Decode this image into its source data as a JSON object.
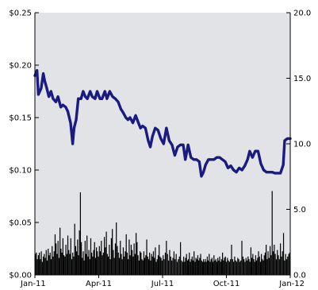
{
  "chart_data": {
    "type": "line",
    "title": "",
    "xlabel": "",
    "ylabel": "",
    "x_ticks": [
      "Jan-11",
      "Apr-11",
      "Jul-11",
      "Oct-11",
      "Jan-12"
    ],
    "x_range": [
      "2011-01-01",
      "2012-01-01"
    ],
    "y_left": {
      "ticks": [
        "$0.00",
        "$0.05",
        "$0.10",
        "$0.15",
        "$0.20",
        "$0.25"
      ],
      "range": [
        0,
        0.25
      ]
    },
    "y_right": {
      "ticks": [
        "0.0",
        "5.0",
        "10.0",
        "15.0",
        "20.0"
      ],
      "range": [
        0,
        20
      ]
    },
    "grid": false,
    "colors": {
      "plot_background": "#e1e3e6",
      "price_line": "#1a1a80",
      "volume_bars": "#000000"
    },
    "series": [
      {
        "type": "line",
        "axis": "left",
        "points": [
          [
            "2011-01-01",
            0.19
          ],
          [
            "2011-01-04",
            0.195
          ],
          [
            "2011-01-06",
            0.172
          ],
          [
            "2011-01-10",
            0.178
          ],
          [
            "2011-01-13",
            0.192
          ],
          [
            "2011-01-15",
            0.185
          ],
          [
            "2011-01-18",
            0.178
          ],
          [
            "2011-01-21",
            0.17
          ],
          [
            "2011-01-24",
            0.175
          ],
          [
            "2011-01-27",
            0.168
          ],
          [
            "2011-01-31",
            0.165
          ],
          [
            "2011-02-03",
            0.17
          ],
          [
            "2011-02-07",
            0.16
          ],
          [
            "2011-02-10",
            0.162
          ],
          [
            "2011-02-14",
            0.16
          ],
          [
            "2011-02-17",
            0.156
          ],
          [
            "2011-02-21",
            0.145
          ],
          [
            "2011-02-24",
            0.125
          ],
          [
            "2011-02-26",
            0.14
          ],
          [
            "2011-03-01",
            0.148
          ],
          [
            "2011-03-04",
            0.168
          ],
          [
            "2011-03-08",
            0.168
          ],
          [
            "2011-03-11",
            0.175
          ],
          [
            "2011-03-14",
            0.17
          ],
          [
            "2011-03-17",
            0.168
          ],
          [
            "2011-03-21",
            0.175
          ],
          [
            "2011-03-24",
            0.17
          ],
          [
            "2011-03-28",
            0.168
          ],
          [
            "2011-03-31",
            0.175
          ],
          [
            "2011-04-04",
            0.168
          ],
          [
            "2011-04-07",
            0.168
          ],
          [
            "2011-04-11",
            0.175
          ],
          [
            "2011-04-14",
            0.168
          ],
          [
            "2011-04-18",
            0.175
          ],
          [
            "2011-04-22",
            0.17
          ],
          [
            "2011-04-26",
            0.168
          ],
          [
            "2011-04-30",
            0.165
          ],
          [
            "2011-05-04",
            0.158
          ],
          [
            "2011-05-07",
            0.155
          ],
          [
            "2011-05-11",
            0.15
          ],
          [
            "2011-05-14",
            0.148
          ],
          [
            "2011-05-17",
            0.15
          ],
          [
            "2011-05-21",
            0.145
          ],
          [
            "2011-05-25",
            0.152
          ],
          [
            "2011-05-29",
            0.145
          ],
          [
            "2011-06-01",
            0.14
          ],
          [
            "2011-06-04",
            0.142
          ],
          [
            "2011-06-08",
            0.14
          ],
          [
            "2011-06-12",
            0.128
          ],
          [
            "2011-06-15",
            0.122
          ],
          [
            "2011-06-18",
            0.132
          ],
          [
            "2011-06-22",
            0.14
          ],
          [
            "2011-06-26",
            0.138
          ],
          [
            "2011-06-30",
            0.13
          ],
          [
            "2011-07-04",
            0.125
          ],
          [
            "2011-07-08",
            0.14
          ],
          [
            "2011-07-12",
            0.128
          ],
          [
            "2011-07-16",
            0.124
          ],
          [
            "2011-07-20",
            0.114
          ],
          [
            "2011-07-24",
            0.122
          ],
          [
            "2011-07-28",
            0.124
          ],
          [
            "2011-08-01",
            0.124
          ],
          [
            "2011-08-04",
            0.11
          ],
          [
            "2011-08-08",
            0.124
          ],
          [
            "2011-08-12",
            0.112
          ],
          [
            "2011-08-16",
            0.11
          ],
          [
            "2011-08-20",
            0.11
          ],
          [
            "2011-08-24",
            0.108
          ],
          [
            "2011-08-27",
            0.094
          ],
          [
            "2011-08-30",
            0.098
          ],
          [
            "2011-09-02",
            0.105
          ],
          [
            "2011-09-06",
            0.11
          ],
          [
            "2011-09-10",
            0.11
          ],
          [
            "2011-09-14",
            0.11
          ],
          [
            "2011-09-18",
            0.112
          ],
          [
            "2011-09-22",
            0.112
          ],
          [
            "2011-09-26",
            0.11
          ],
          [
            "2011-09-30",
            0.108
          ],
          [
            "2011-10-04",
            0.102
          ],
          [
            "2011-10-08",
            0.104
          ],
          [
            "2011-10-12",
            0.1
          ],
          [
            "2011-10-16",
            0.098
          ],
          [
            "2011-10-20",
            0.102
          ],
          [
            "2011-10-24",
            0.1
          ],
          [
            "2011-10-28",
            0.104
          ],
          [
            "2011-11-01",
            0.11
          ],
          [
            "2011-11-04",
            0.118
          ],
          [
            "2011-11-08",
            0.112
          ],
          [
            "2011-11-12",
            0.118
          ],
          [
            "2011-11-16",
            0.118
          ],
          [
            "2011-11-20",
            0.106
          ],
          [
            "2011-11-24",
            0.1
          ],
          [
            "2011-11-28",
            0.098
          ],
          [
            "2011-12-02",
            0.098
          ],
          [
            "2011-12-06",
            0.098
          ],
          [
            "2011-12-10",
            0.097
          ],
          [
            "2011-12-14",
            0.097
          ],
          [
            "2011-12-18",
            0.097
          ],
          [
            "2011-12-22",
            0.105
          ],
          [
            "2011-12-24",
            0.128
          ],
          [
            "2011-12-28",
            0.13
          ],
          [
            "2012-01-01",
            0.13
          ]
        ]
      },
      {
        "type": "bar",
        "axis": "right",
        "monthly_volume": [
          {
            "month": "2011-01",
            "values": [
              1.6,
              1.7,
              1.2,
              1.5,
              1.7,
              1.2,
              1.8,
              1.0,
              1.4,
              1.6,
              1.3,
              1.9,
              1.1,
              2.0,
              1.5,
              1.7,
              1.2,
              2.2,
              1.4,
              1.8,
              3.1,
              2.4
            ]
          },
          {
            "month": "2011-02",
            "values": [
              1.6,
              2.6,
              1.3,
              3.6,
              2.0,
              1.7,
              2.8,
              1.5,
              1.4,
              2.3,
              1.6,
              3.0,
              1.9,
              1.6,
              2.8,
              1.2,
              1.7,
              1.4,
              3.9,
              2.2
            ]
          },
          {
            "month": "2011-03",
            "values": [
              1.8,
              2.7,
              1.5,
              3.4,
              6.3,
              2.5,
              1.3,
              1.8,
              1.1,
              2.6,
              1.6,
              3.0,
              1.4,
              1.9,
              1.2,
              2.8,
              1.7,
              1.4,
              1.9,
              2.5,
              1.3,
              2.1,
              1.8
            ]
          },
          {
            "month": "2011-04",
            "values": [
              1.4,
              2.2,
              1.8,
              2.6,
              1.5,
              1.7,
              2.9,
              2.1,
              3.3,
              1.6,
              1.4,
              2.3,
              1.2,
              2.8,
              3.5,
              1.9,
              1.3,
              2.4,
              4.0,
              2.2,
              1.7
            ]
          },
          {
            "month": "2011-05",
            "values": [
              1.3,
              2.6,
              1.6,
              1.2,
              2.1,
              1.4,
              1.8,
              3.1,
              1.7,
              1.2,
              2.7,
              1.5,
              2.3,
              1.9,
              1.4,
              2.4,
              1.6,
              3.2,
              2.5,
              1.5,
              1.1,
              1.8
            ]
          },
          {
            "month": "2011-06",
            "values": [
              1.7,
              1.2,
              1.1,
              1.8,
              1.3,
              1.5,
              2.7,
              1.4,
              1.2,
              1.7,
              1.1,
              1.6,
              1.4,
              1.8,
              1.3,
              2.1,
              1.0,
              1.2,
              1.5,
              2.3,
              1.4,
              1.3
            ]
          },
          {
            "month": "2011-07",
            "values": [
              1.1,
              1.5,
              1.2,
              1.7,
              2.6,
              1.6,
              1.1,
              1.9,
              1.4,
              1.1,
              1.3,
              1.8,
              1.2,
              1.6,
              1.0,
              1.2,
              1.4,
              2.5,
              1.1,
              1.0
            ]
          },
          {
            "month": "2011-08",
            "values": [
              1.4,
              1.0,
              1.3,
              1.6,
              1.1,
              1.2,
              1.7,
              1.0,
              1.2,
              1.4,
              1.1,
              1.8,
              1.0,
              1.3,
              1.2,
              1.5,
              1.1,
              1.3,
              1.6,
              1.1,
              1.0,
              1.2,
              1.0
            ]
          },
          {
            "month": "2011-09",
            "values": [
              1.2,
              1.0,
              1.4,
              1.1,
              1.6,
              1.0,
              1.2,
              1.3,
              1.0,
              1.5,
              1.1,
              1.2,
              1.0,
              1.3,
              1.1,
              1.4,
              1.0,
              1.2,
              1.7,
              1.1,
              1.3,
              1.4
            ]
          },
          {
            "month": "2011-10",
            "values": [
              1.0,
              1.3,
              1.1,
              1.0,
              1.2,
              2.3,
              1.2,
              1.0,
              1.4,
              1.1,
              1.0,
              1.3,
              1.2,
              1.0,
              1.1,
              2.6,
              1.4,
              1.2,
              1.0,
              1.3,
              1.1
            ]
          },
          {
            "month": "2011-11",
            "values": [
              1.4,
              1.2,
              1.0,
              2.1,
              1.3,
              1.6,
              1.2,
              1.0,
              1.5,
              1.1,
              1.3,
              1.8,
              1.4,
              1.0,
              1.6,
              1.2,
              1.1,
              1.5,
              1.7,
              2.3,
              1.2,
              1.8
            ]
          },
          {
            "month": "2011-12",
            "values": [
              1.3,
              2.2,
              1.5,
              6.4,
              1.8,
              2.3,
              1.6,
              1.2,
              1.9,
              1.5,
              1.2,
              2.4,
              1.4,
              1.8,
              3.2,
              1.1,
              1.6,
              1.2,
              1.4,
              1.6,
              1.7
            ]
          }
        ]
      }
    ]
  }
}
